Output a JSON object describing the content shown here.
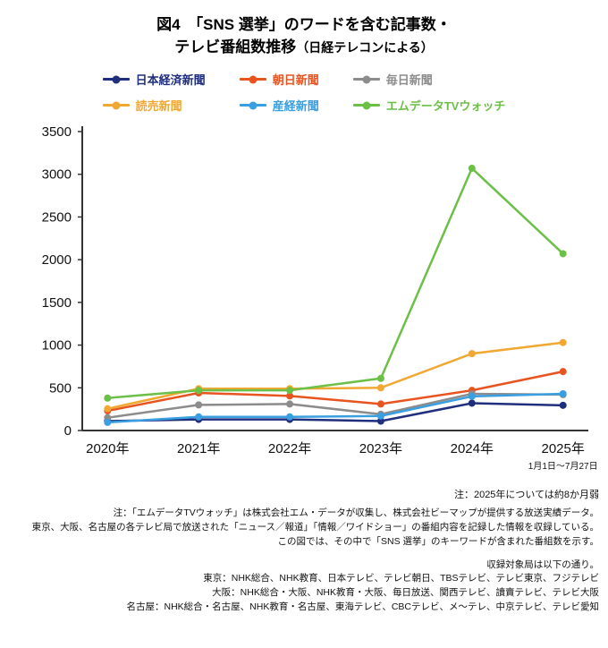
{
  "title": {
    "line1": "図4　「SNS 選挙」のワードを含む記事数・",
    "line2_main": "テレビ番組数推移",
    "line2_sub": "（日経テレコンによる）"
  },
  "chart_data": {
    "type": "line",
    "categories": [
      "2020年",
      "2021年",
      "2022年",
      "2023年",
      "2024年",
      "2025年"
    ],
    "x_sub_label": "1月1日～7月27日",
    "ylim": [
      0,
      3500
    ],
    "ytick_step": 500,
    "grid": false,
    "legend_position": "top",
    "series": [
      {
        "name": "日本経済新聞",
        "color": "#1f2f7e",
        "values": [
          110,
          130,
          130,
          110,
          320,
          295
        ]
      },
      {
        "name": "朝日新聞",
        "color": "#e8541f",
        "values": [
          230,
          440,
          405,
          310,
          470,
          690
        ]
      },
      {
        "name": "毎日新聞",
        "color": "#8c8c8c",
        "values": [
          150,
          300,
          310,
          190,
          430,
          420
        ]
      },
      {
        "name": "読売新聞",
        "color": "#f0a832",
        "values": [
          255,
          490,
          490,
          500,
          900,
          1030
        ]
      },
      {
        "name": "産経新聞",
        "color": "#3a9fe0",
        "values": [
          95,
          160,
          160,
          170,
          400,
          430
        ]
      },
      {
        "name": "エムデータTVウォッチ",
        "color": "#6cbf47",
        "values": [
          380,
          470,
          470,
          610,
          3070,
          2070
        ]
      }
    ]
  },
  "notes": {
    "note_months": "注：2025年については約8か月弱",
    "block1": [
      "注：「エムデータTVウォッチ」は株式会社エム・データが収集し、株式会社ビーマップが提供する放送実績データ。",
      "東京、大阪、名古屋の各テレビ局で放送された「ニュース／報道」「情報／ワイドショー」の番組内容を記録した情報を収録している。",
      "この図では、その中で「SNS 選挙」のキーワードが含まれた番組数を示す。"
    ],
    "block2": [
      "収録対象局は以下の通り。",
      "東京：NHK総合、NHK教育、日本テレビ、テレビ朝日、TBSテレビ、テレビ東京、フジテレビ",
      "大阪：NHK総合・大阪、NHK教育・大阪、毎日放送、関西テレビ、讀賣テレビ、テレビ大阪",
      "名古屋：NHK総合・名古屋、NHK教育・名古屋、東海テレビ、CBCテレビ、メ～テレ、中京テレビ、テレビ愛知"
    ]
  }
}
